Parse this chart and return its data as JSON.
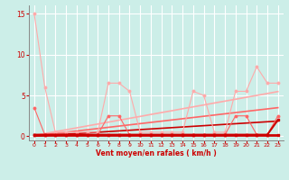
{
  "x": [
    0,
    1,
    2,
    3,
    4,
    5,
    6,
    7,
    8,
    9,
    10,
    11,
    12,
    13,
    14,
    15,
    16,
    17,
    18,
    19,
    20,
    21,
    22,
    23
  ],
  "line_light_rafales": [
    15,
    6,
    0.5,
    0.5,
    0.5,
    0.5,
    0.5,
    6.5,
    6.5,
    5.5,
    0.5,
    0.5,
    0.5,
    0.5,
    0.5,
    5.5,
    5.0,
    0.5,
    0.5,
    5.5,
    5.5,
    8.5,
    6.5,
    6.5
  ],
  "line_light_moyen": [
    3.5,
    0.2,
    0.2,
    0.2,
    0.2,
    0.2,
    0.2,
    2.5,
    2.5,
    0.2,
    0.2,
    0.2,
    0.2,
    0.2,
    0.2,
    0.2,
    0.2,
    0.2,
    0.2,
    2.5,
    2.5,
    0.2,
    0.2,
    2.5
  ],
  "line_dark_rafales": [
    0.2,
    0.2,
    0.2,
    0.2,
    0.2,
    0.2,
    0.2,
    0.2,
    0.2,
    0.2,
    0.2,
    0.2,
    0.2,
    0.2,
    0.2,
    0.2,
    0.2,
    0.2,
    0.2,
    0.2,
    0.2,
    0.2,
    0.2,
    2.0
  ],
  "line_dark_moyen": [
    0.2,
    0.2,
    0.2,
    0.2,
    0.2,
    0.2,
    0.2,
    0.2,
    0.2,
    0.2,
    0.2,
    0.2,
    0.2,
    0.2,
    0.2,
    0.2,
    0.2,
    0.2,
    0.2,
    0.2,
    0.2,
    0.2,
    0.2,
    0.2
  ],
  "trend_light": [
    0.1,
    0.33,
    0.57,
    0.8,
    1.03,
    1.27,
    1.5,
    1.73,
    1.97,
    2.2,
    2.43,
    2.67,
    2.9,
    3.13,
    3.37,
    3.6,
    3.83,
    4.07,
    4.3,
    4.53,
    4.77,
    5.0,
    5.23,
    5.47
  ],
  "trend_medium": [
    0.05,
    0.2,
    0.35,
    0.5,
    0.65,
    0.8,
    0.95,
    1.1,
    1.25,
    1.4,
    1.55,
    1.7,
    1.85,
    2.0,
    2.15,
    2.3,
    2.45,
    2.6,
    2.75,
    2.9,
    3.05,
    3.2,
    3.35,
    3.5
  ],
  "trend_dark": [
    0.02,
    0.1,
    0.18,
    0.26,
    0.34,
    0.42,
    0.5,
    0.58,
    0.66,
    0.74,
    0.82,
    0.9,
    0.98,
    1.06,
    1.14,
    1.22,
    1.3,
    1.38,
    1.46,
    1.54,
    1.62,
    1.7,
    1.78,
    1.86
  ],
  "bg_color": "#cceee8",
  "grid_color": "#ffffff",
  "color_light": "#ffaaaa",
  "color_medium": "#ff6666",
  "color_dark": "#cc0000",
  "xlabel": "Vent moyen/en rafales ( km/h )",
  "xlabel_color": "#cc0000",
  "tick_color": "#cc0000",
  "axis_color": "#888888",
  "ylim": [
    -0.5,
    16
  ],
  "xlim": [
    -0.5,
    23.5
  ],
  "yticks": [
    0,
    5,
    10,
    15
  ],
  "xticks": [
    0,
    1,
    2,
    3,
    4,
    5,
    6,
    7,
    8,
    9,
    10,
    11,
    12,
    13,
    14,
    15,
    16,
    17,
    18,
    19,
    20,
    21,
    22,
    23
  ]
}
